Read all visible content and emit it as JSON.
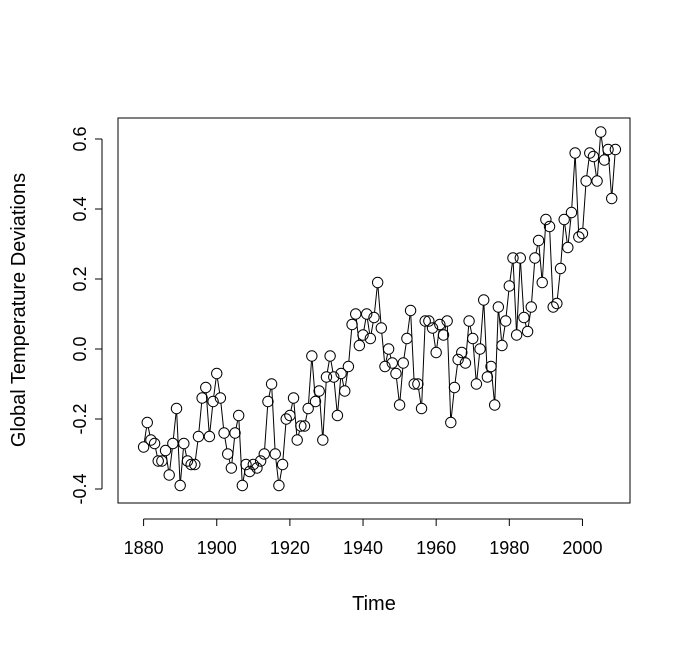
{
  "chart_data": {
    "type": "line",
    "title": "",
    "xlabel": "Time",
    "ylabel": "Global Temperature Deviations",
    "xlim": [
      1873,
      2013
    ],
    "ylim": [
      -0.44,
      0.66
    ],
    "grid": false,
    "legend": "none",
    "x_ticks": [
      "1880",
      "1900",
      "1920",
      "1940",
      "1960",
      "1980",
      "2000"
    ],
    "y_ticks": [
      "-0.4",
      "-0.2",
      "0.0",
      "0.2",
      "0.4",
      "0.6"
    ],
    "series": [
      {
        "name": "",
        "x": [
          1880,
          1881,
          1882,
          1883,
          1884,
          1885,
          1886,
          1887,
          1888,
          1889,
          1890,
          1891,
          1892,
          1893,
          1894,
          1895,
          1896,
          1897,
          1898,
          1899,
          1900,
          1901,
          1902,
          1903,
          1904,
          1905,
          1906,
          1907,
          1908,
          1909,
          1910,
          1911,
          1912,
          1913,
          1914,
          1915,
          1916,
          1917,
          1918,
          1919,
          1920,
          1921,
          1922,
          1923,
          1924,
          1925,
          1926,
          1927,
          1928,
          1929,
          1930,
          1931,
          1932,
          1933,
          1934,
          1935,
          1936,
          1937,
          1938,
          1939,
          1940,
          1941,
          1942,
          1943,
          1944,
          1945,
          1946,
          1947,
          1948,
          1949,
          1950,
          1951,
          1952,
          1953,
          1954,
          1955,
          1956,
          1957,
          1958,
          1959,
          1960,
          1961,
          1962,
          1963,
          1964,
          1965,
          1966,
          1967,
          1968,
          1969,
          1970,
          1971,
          1972,
          1973,
          1974,
          1975,
          1976,
          1977,
          1978,
          1979,
          1980,
          1981,
          1982,
          1983,
          1984,
          1985,
          1986,
          1987,
          1988,
          1989,
          1990,
          1991,
          1992,
          1993,
          1994,
          1995,
          1996,
          1997,
          1998,
          1999,
          2000,
          2001,
          2002,
          2003,
          2004,
          2005,
          2006,
          2007,
          2008,
          2009
        ],
        "values": [
          -0.28,
          -0.21,
          -0.26,
          -0.27,
          -0.32,
          -0.32,
          -0.29,
          -0.36,
          -0.27,
          -0.17,
          -0.39,
          -0.27,
          -0.32,
          -0.33,
          -0.33,
          -0.25,
          -0.14,
          -0.11,
          -0.25,
          -0.15,
          -0.07,
          -0.14,
          -0.24,
          -0.3,
          -0.34,
          -0.24,
          -0.19,
          -0.39,
          -0.33,
          -0.35,
          -0.33,
          -0.34,
          -0.32,
          -0.3,
          -0.15,
          -0.1,
          -0.3,
          -0.39,
          -0.33,
          -0.2,
          -0.19,
          -0.14,
          -0.26,
          -0.22,
          -0.22,
          -0.17,
          -0.02,
          -0.15,
          -0.12,
          -0.26,
          -0.08,
          -0.02,
          -0.08,
          -0.19,
          -0.07,
          -0.12,
          -0.05,
          0.07,
          0.1,
          0.01,
          0.04,
          0.1,
          0.03,
          0.09,
          0.19,
          0.06,
          -0.05,
          0.0,
          -0.04,
          -0.07,
          -0.16,
          -0.04,
          0.03,
          0.11,
          -0.1,
          -0.1,
          -0.17,
          0.08,
          0.08,
          0.06,
          -0.01,
          0.07,
          0.04,
          0.08,
          -0.21,
          -0.11,
          -0.03,
          -0.01,
          -0.04,
          0.08,
          0.03,
          -0.1,
          0.0,
          0.14,
          -0.08,
          -0.05,
          -0.16,
          0.12,
          0.01,
          0.08,
          0.18,
          0.26,
          0.04,
          0.26,
          0.09,
          0.05,
          0.12,
          0.26,
          0.31,
          0.19,
          0.37,
          0.35,
          0.12,
          0.13,
          0.23,
          0.37,
          0.29,
          0.39,
          0.56,
          0.32,
          0.33,
          0.48,
          0.56,
          0.55,
          0.48,
          0.62,
          0.54,
          0.57,
          0.43,
          0.57
        ]
      }
    ]
  }
}
